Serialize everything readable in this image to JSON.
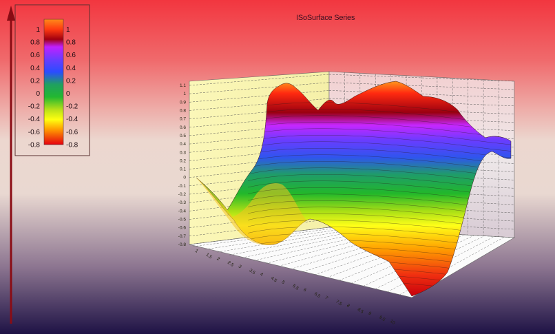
{
  "chart_data": {
    "type": "surface",
    "title": "ISoSurface Series",
    "xlabel": "",
    "ylabel": "",
    "zlim": [
      -0.8,
      1.1
    ],
    "z_ticks": [
      "-0.8",
      "-0.7",
      "-0.6",
      "-0.5",
      "-0.4",
      "-0.3",
      "-0.2",
      "-0.1",
      "0",
      "0.1",
      "0.2",
      "0.3",
      "0.4",
      "0.5",
      "0.6",
      "0.7",
      "0.8",
      "0.9",
      "1",
      "1.1"
    ],
    "x_ticks": [
      "1",
      "1.5",
      "2",
      "2.5",
      "3",
      "3.5",
      "4",
      "4.5",
      "5",
      "5.5",
      "6",
      "6.5",
      "7",
      "7.5",
      "8",
      "8.5",
      "9",
      "9.5",
      "10"
    ],
    "legend": {
      "left_labels": [
        "1",
        "0.8",
        "0.6",
        "0.4",
        "0.2",
        "0",
        "-0.2",
        "-0.4",
        "-0.6",
        "-0.8"
      ],
      "right_labels": [
        "1",
        "0.8",
        "0.6",
        "0.4",
        "0.2",
        "0",
        "-0.2",
        "-0.4",
        "-0.6",
        "-0.8"
      ]
    },
    "grid": true,
    "legend_placement": "top-left",
    "surface_profile": {
      "front_edge_x": [
        1,
        3,
        4.5,
        6,
        8,
        10
      ],
      "front_edge_z": [
        0.05,
        -0.65,
        -0.2,
        -0.45,
        -0.8,
        -0.8
      ],
      "back_edge_x": [
        1,
        2,
        3,
        5,
        6.5,
        8,
        9,
        10
      ],
      "back_edge_z": [
        0.9,
        1.05,
        0.85,
        1.0,
        1.1,
        0.95,
        0.75,
        0.5
      ]
    },
    "colors": {
      "bg_top": "#f23a44",
      "bg_mid": "#ead4cc",
      "bg_bottom": "#24164c",
      "wall_back": "#eceaec",
      "wall_left": "#fbf6b4",
      "floor": "#fafafa"
    }
  }
}
